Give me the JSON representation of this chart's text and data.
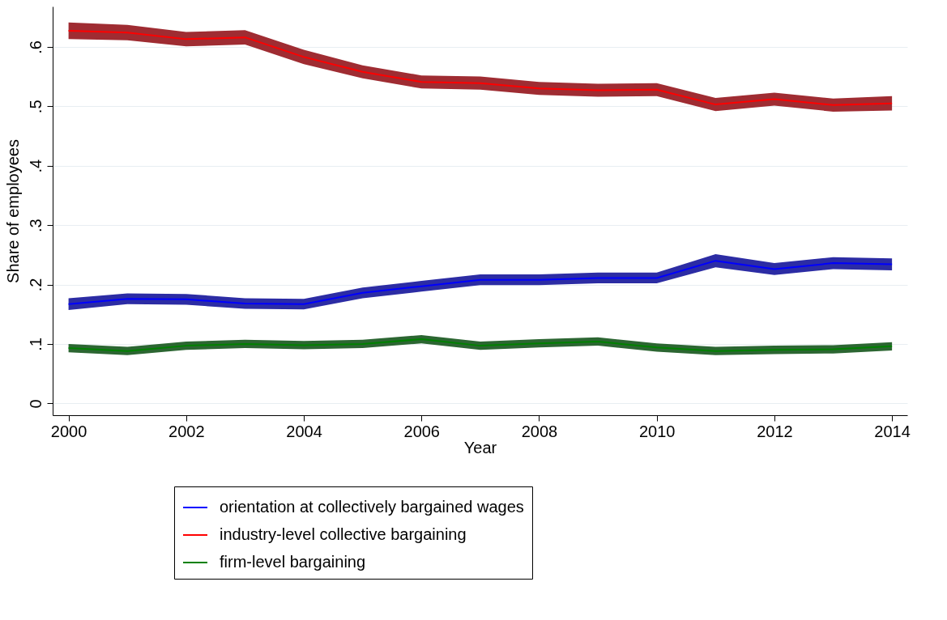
{
  "chart_data": {
    "type": "line",
    "xlabel": "Year",
    "ylabel": "Share of employees",
    "x": [
      2000,
      2001,
      2002,
      2003,
      2004,
      2005,
      2006,
      2007,
      2008,
      2009,
      2010,
      2011,
      2012,
      2013,
      2014
    ],
    "series": [
      {
        "name": "orientation at collectively bargained wages",
        "color": "#0000ff",
        "values": [
          0.167,
          0.176,
          0.175,
          0.168,
          0.167,
          0.186,
          0.197,
          0.208,
          0.208,
          0.211,
          0.211,
          0.24,
          0.226,
          0.236,
          0.234
        ],
        "lower": [
          0.157,
          0.167,
          0.166,
          0.159,
          0.158,
          0.177,
          0.188,
          0.199,
          0.199,
          0.202,
          0.202,
          0.229,
          0.216,
          0.226,
          0.224
        ],
        "upper": [
          0.177,
          0.185,
          0.184,
          0.177,
          0.176,
          0.195,
          0.206,
          0.217,
          0.217,
          0.22,
          0.22,
          0.251,
          0.236,
          0.246,
          0.244
        ]
      },
      {
        "name": "industry-level collective bargaining",
        "color": "#ff0000",
        "values": [
          0.627,
          0.624,
          0.613,
          0.616,
          0.583,
          0.558,
          0.541,
          0.539,
          0.53,
          0.527,
          0.528,
          0.503,
          0.512,
          0.502,
          0.505
        ],
        "lower": [
          0.613,
          0.611,
          0.601,
          0.604,
          0.571,
          0.547,
          0.53,
          0.528,
          0.519,
          0.516,
          0.517,
          0.492,
          0.501,
          0.491,
          0.493
        ],
        "upper": [
          0.641,
          0.637,
          0.625,
          0.628,
          0.595,
          0.569,
          0.552,
          0.55,
          0.541,
          0.538,
          0.539,
          0.514,
          0.523,
          0.513,
          0.517
        ]
      },
      {
        "name": "firm-level bargaining",
        "color": "#008000",
        "values": [
          0.093,
          0.088,
          0.097,
          0.1,
          0.098,
          0.1,
          0.108,
          0.097,
          0.101,
          0.104,
          0.094,
          0.088,
          0.09,
          0.091,
          0.096
        ],
        "lower": [
          0.086,
          0.081,
          0.09,
          0.093,
          0.091,
          0.093,
          0.101,
          0.09,
          0.094,
          0.097,
          0.087,
          0.081,
          0.083,
          0.084,
          0.089
        ],
        "upper": [
          0.1,
          0.095,
          0.104,
          0.107,
          0.105,
          0.107,
          0.115,
          0.104,
          0.108,
          0.111,
          0.101,
          0.095,
          0.097,
          0.098,
          0.103
        ]
      }
    ],
    "xlim": [
      1999.73,
      2014.26
    ],
    "xticks": [
      2000,
      2002,
      2004,
      2006,
      2008,
      2010,
      2012,
      2014
    ],
    "ylim": [
      -0.02,
      0.668
    ],
    "yticks": [
      {
        "value": 0,
        "label": "0"
      },
      {
        "value": 0.1,
        "label": ".1"
      },
      {
        "value": 0.2,
        "label": ".2"
      },
      {
        "value": 0.3,
        "label": ".3"
      },
      {
        "value": 0.4,
        "label": ".4"
      },
      {
        "value": 0.5,
        "label": ".5"
      },
      {
        "value": 0.6,
        "label": ".6"
      }
    ],
    "grid": "y",
    "legend": "bottom",
    "marker": "none",
    "line_style": "solid"
  }
}
